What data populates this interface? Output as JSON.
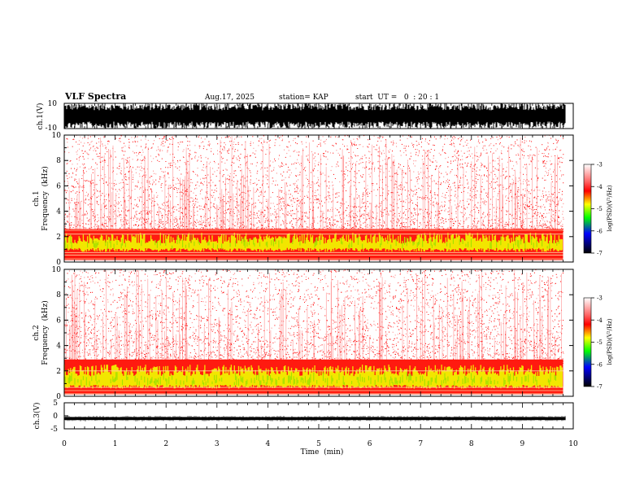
{
  "header": {
    "title": "VLF Spectra",
    "date": "Aug.17, 2025",
    "station": "station= KAP",
    "start": "start  UT =   0  : 20 : 1"
  },
  "chart_data": [
    {
      "type": "line",
      "name": "ch1-waveform",
      "ylabel": "ch.1(V)",
      "ylim": [
        -10,
        10
      ],
      "yticks": [
        "10",
        "-10"
      ],
      "xlim": [
        0,
        10
      ]
    },
    {
      "type": "heatmap",
      "name": "ch1-spectrogram",
      "ylabel": "ch.1\nFrequency (kHz)",
      "ylabel_lines": [
        "ch.1",
        "Frequency  (kHz)"
      ],
      "ylim": [
        0,
        10
      ],
      "yticks": [
        "0",
        "2",
        "4",
        "6",
        "8",
        "10"
      ],
      "xlim": [
        0,
        9.8
      ],
      "colorbar": {
        "label": "log(PSD)(V²/Hz)",
        "range": [
          -7,
          -3
        ],
        "ticks": [
          "-3",
          "-4",
          "-5",
          "-6",
          "-7"
        ],
        "colors": [
          "#ffffff",
          "#ff0000",
          "#ffff00",
          "#00ff00",
          "#0000ff",
          "#000000"
        ]
      }
    },
    {
      "type": "heatmap",
      "name": "ch2-spectrogram",
      "ylabel_lines": [
        "ch.2",
        "Frequency  (kHz)"
      ],
      "ylim": [
        0,
        10
      ],
      "yticks": [
        "0",
        "2",
        "4",
        "6",
        "8",
        "10"
      ],
      "xlim": [
        0,
        9.8
      ],
      "colorbar": {
        "label": "log(PSD)(V²/Hz)",
        "range": [
          -7,
          -3
        ],
        "ticks": [
          "-3",
          "-4",
          "-5",
          "-6",
          "-7"
        ]
      }
    },
    {
      "type": "line",
      "name": "ch3-waveform",
      "ylabel": "ch.3(V)",
      "ylim": [
        -5,
        5
      ],
      "yticks": [
        "5",
        "0",
        "-5"
      ],
      "xlim": [
        0,
        10
      ]
    }
  ],
  "xaxis": {
    "label": "Time  (min)",
    "ticks": [
      "0",
      "1",
      "2",
      "3",
      "4",
      "5",
      "6",
      "7",
      "8",
      "9",
      "10"
    ]
  }
}
